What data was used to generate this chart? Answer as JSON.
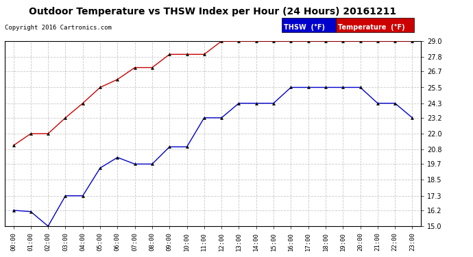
{
  "title": "Outdoor Temperature vs THSW Index per Hour (24 Hours) 20161211",
  "copyright": "Copyright 2016 Cartronics.com",
  "background_color": "#ffffff",
  "plot_bg_color": "#ffffff",
  "grid_color": "#c8c8c8",
  "hours": [
    0,
    1,
    2,
    3,
    4,
    5,
    6,
    7,
    8,
    9,
    10,
    11,
    12,
    13,
    14,
    15,
    16,
    17,
    18,
    19,
    20,
    21,
    22,
    23
  ],
  "temperature": [
    16.2,
    16.1,
    15.0,
    17.3,
    17.3,
    19.4,
    20.2,
    19.7,
    19.7,
    21.0,
    21.0,
    23.2,
    23.2,
    24.3,
    24.3,
    24.3,
    25.5,
    25.5,
    25.5,
    25.5,
    25.5,
    24.3,
    24.3,
    23.2
  ],
  "thsw": [
    21.1,
    22.0,
    22.0,
    23.2,
    24.3,
    25.5,
    26.1,
    27.0,
    27.0,
    28.0,
    28.0,
    28.0,
    29.0,
    29.0,
    29.0,
    29.0,
    29.0,
    29.0,
    29.0,
    29.0,
    29.0,
    29.0,
    29.0,
    29.0
  ],
  "temp_color": "#0000cc",
  "thsw_color": "#cc0000",
  "ylim_min": 15.0,
  "ylim_max": 29.0,
  "yticks": [
    15.0,
    16.2,
    17.3,
    18.5,
    19.7,
    20.8,
    22.0,
    23.2,
    24.3,
    25.5,
    26.7,
    27.8,
    29.0
  ],
  "legend_thsw_bg": "#0000cc",
  "legend_temp_bg": "#cc0000",
  "legend_thsw_text": "THSW  (°F)",
  "legend_temp_text": "Temperature  (°F)"
}
